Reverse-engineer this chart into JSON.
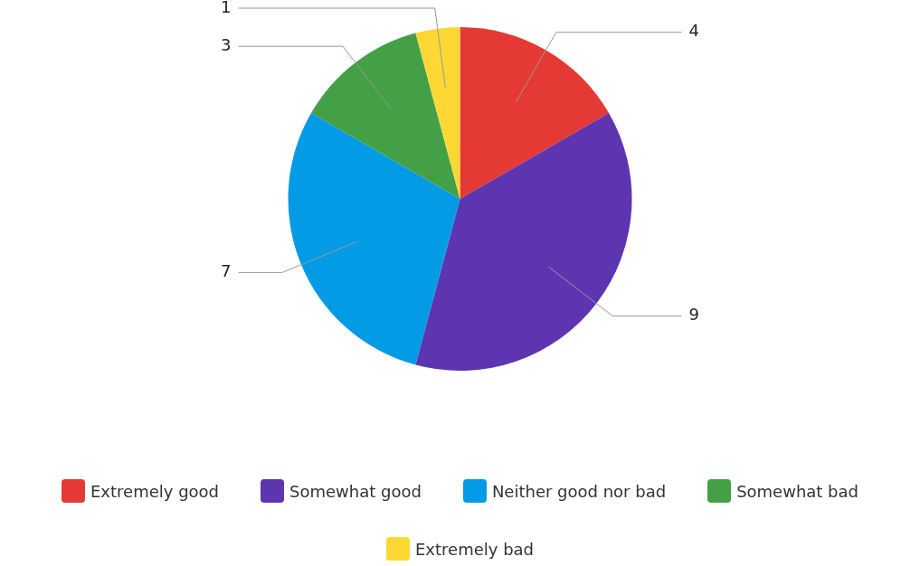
{
  "chart_data": {
    "type": "pie",
    "categories": [
      "Extremely good",
      "Somewhat good",
      "Neither good nor bad",
      "Somewhat bad",
      "Extremely bad"
    ],
    "values": [
      4,
      9,
      7,
      3,
      1
    ],
    "colors": [
      "#e53935",
      "#5e35b1",
      "#039be5",
      "#43a047",
      "#fdd835"
    ],
    "data_labels": true,
    "legend": "bottom"
  }
}
